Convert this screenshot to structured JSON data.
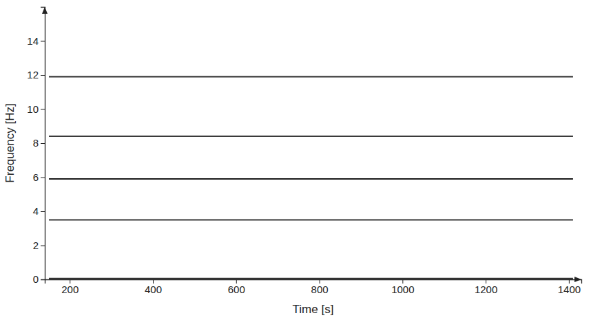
{
  "chart_data": {
    "type": "line",
    "x_label": "Time [s]",
    "y_label": "Frequency [Hz]",
    "x": [
      150,
      400,
      600,
      800,
      1000,
      1200,
      1410
    ],
    "series": [
      {
        "color": "#2b2b2b",
        "values": [
          11.9,
          11.9,
          11.9,
          11.9,
          11.9,
          11.9,
          11.9
        ]
      },
      {
        "color": "#3a3a3a",
        "values": [
          8.4,
          8.4,
          8.4,
          8.4,
          8.4,
          8.4,
          8.4
        ]
      },
      {
        "color": "#1a1a1a",
        "values": [
          5.9,
          5.9,
          5.9,
          5.9,
          5.9,
          5.9,
          5.9
        ]
      },
      {
        "color": "#3a3a3a",
        "values": [
          3.5,
          3.5,
          3.5,
          3.5,
          3.5,
          3.5,
          3.5
        ]
      },
      {
        "color": "#2b2b2b",
        "values": [
          0.05,
          0.05,
          0.05,
          0.05,
          0.05,
          0.05,
          0.05
        ]
      }
    ],
    "xlim": [
      140,
      1430
    ],
    "ylim": [
      0,
      16
    ],
    "xticks": [
      200,
      400,
      600,
      800,
      1000,
      1200,
      1400
    ],
    "yticks": [
      0,
      2,
      4,
      6,
      8,
      10,
      12,
      14
    ],
    "grid": false
  }
}
